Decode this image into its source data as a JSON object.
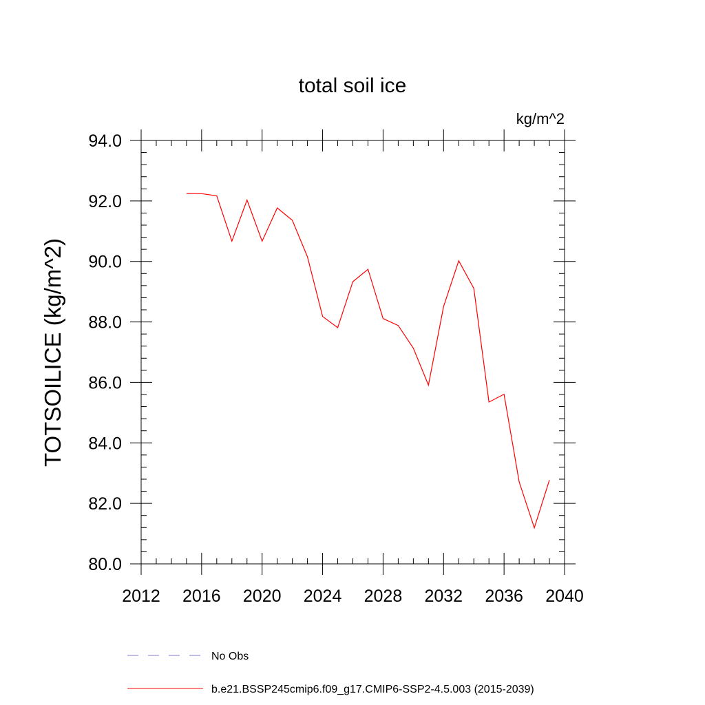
{
  "chart_data": {
    "type": "line",
    "title": "total soil ice",
    "units_label": "kg/m^2",
    "ylabel": "TOTSOILICE  (kg/m^2)",
    "xlabel": "",
    "xlim": [
      2012,
      2040
    ],
    "ylim": [
      80.0,
      94.0
    ],
    "x_ticks": [
      2012,
      2016,
      2020,
      2024,
      2028,
      2032,
      2036,
      2040
    ],
    "x_tick_labels": [
      "2012",
      "2016",
      "2020",
      "2024",
      "2028",
      "2032",
      "2036",
      "2040"
    ],
    "y_ticks": [
      80,
      82,
      84,
      86,
      88,
      90,
      92,
      94
    ],
    "y_tick_labels": [
      "80.0",
      "82.0",
      "84.0",
      "86.0",
      "88.0",
      "90.0",
      "92.0",
      "94.0"
    ],
    "grid": false,
    "legend_position": "bottom",
    "series": [
      {
        "name": "No Obs",
        "color": "#7b7bd6",
        "dash": "dashed",
        "x": [],
        "y": []
      },
      {
        "name": "b.e21.BSSP245cmip6.f09_g17.CMIP6-SSP2-4.5.003 (2015-2039)",
        "color": "#ff0000",
        "dash": "solid",
        "x": [
          2015,
          2016,
          2017,
          2018,
          2019,
          2020,
          2021,
          2022,
          2023,
          2024,
          2025,
          2026,
          2027,
          2028,
          2029,
          2030,
          2031,
          2032,
          2033,
          2034,
          2035,
          2036,
          2037,
          2038,
          2039
        ],
        "y": [
          92.25,
          92.24,
          92.17,
          90.67,
          92.03,
          90.67,
          91.77,
          91.36,
          90.15,
          88.18,
          87.81,
          89.33,
          89.74,
          88.11,
          87.88,
          87.13,
          85.91,
          88.51,
          90.02,
          89.11,
          85.35,
          85.61,
          82.71,
          81.19,
          82.77
        ]
      }
    ]
  }
}
